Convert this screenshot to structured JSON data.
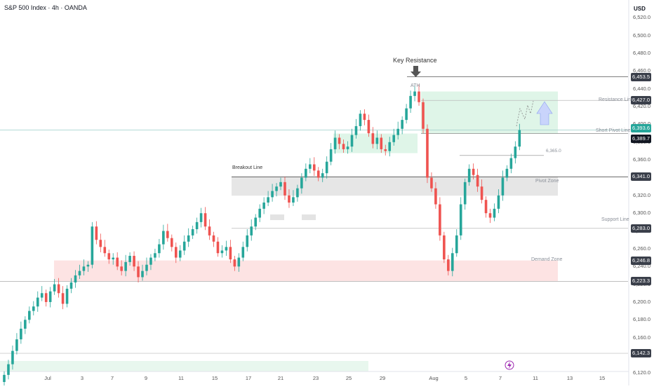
{
  "header": {
    "title": "S&P 500 Index · 4h · OANDA",
    "currency": "USD"
  },
  "price_axis": {
    "ticks": [
      "6,520.0",
      "6,500.0",
      "6,480.0",
      "6,460.0",
      "6,440.0",
      "6,420.0",
      "6,400.0",
      "6,380.0",
      "6,360.0",
      "6,340.0",
      "6,320.0",
      "6,300.0",
      "6,280.0",
      "6,260.0",
      "6,240.0",
      "6,220.0",
      "6,200.0",
      "6,180.0",
      "6,160.0",
      "6,140.0",
      "6,120.0"
    ],
    "tags": [
      {
        "label": "6,453.5",
        "color": "#3a3f4a"
      },
      {
        "label": "6,427.0",
        "color": "#3a3f4a"
      },
      {
        "label": "6,393.6",
        "color": "#26a69a"
      },
      {
        "label": "02:18:34",
        "color": "#26a69a"
      },
      {
        "label": "6,389.7",
        "color": "#131722"
      },
      {
        "label": "6,341.0",
        "color": "#3a3f4a"
      },
      {
        "label": "6,283.0",
        "color": "#3a3f4a"
      },
      {
        "label": "6,246.8",
        "color": "#3a3f4a"
      },
      {
        "label": "6,223.3",
        "color": "#3a3f4a"
      },
      {
        "label": "6,142.3",
        "color": "#3a3f4a"
      }
    ]
  },
  "time_axis": {
    "labels": [
      "Jul",
      "3",
      "7",
      "9",
      "11",
      "15",
      "17",
      "21",
      "23",
      "25",
      "29",
      "Aug",
      "5",
      "7",
      "11",
      "13",
      "15"
    ]
  },
  "annotations": {
    "key_resistance": "Key Resistance",
    "ath": "ATH",
    "resistance_line": "Resistance Line",
    "short_pivot_line": "Short Pivot Line",
    "breakout_line": "Breakout Line",
    "pivot_zone": "Pivot Zone",
    "support_line": "Support Line",
    "demand_zone": "Demand Zone",
    "level_6365": "6,365.0"
  },
  "colors": {
    "up": "#26a69a",
    "down": "#ef5350",
    "demand_zone": "#fde3e3",
    "pivot_zone": "#e6e6e6",
    "resistance_zone": "#dff5e8"
  },
  "chart_data": {
    "type": "candlestick",
    "symbol": "S&P 500 Index",
    "timeframe": "4h",
    "ylim": [
      6110,
      6540
    ],
    "levels": {
      "key_resistance": 6453.5,
      "resistance_line": 6427.0,
      "short_pivot_line": 6389.7,
      "breakout_line": 6341.0,
      "support_line": 6283.0,
      "demand_zone": [
        6223.3,
        6246.8
      ],
      "current_price": 6393.6
    },
    "closes": [
      6118,
      6130,
      6145,
      6158,
      6170,
      6180,
      6190,
      6195,
      6205,
      6210,
      6200,
      6212,
      6220,
      6210,
      6198,
      6215,
      6222,
      6230,
      6235,
      6240,
      6242,
      6285,
      6270,
      6262,
      6255,
      6248,
      6250,
      6240,
      6235,
      6245,
      6252,
      6240,
      6228,
      6235,
      6242,
      6250,
      6255,
      6265,
      6280,
      6272,
      6262,
      6250,
      6258,
      6268,
      6275,
      6282,
      6290,
      6300,
      6285,
      6275,
      6268,
      6255,
      6258,
      6262,
      6248,
      6240,
      6250,
      6262,
      6275,
      6285,
      6295,
      6305,
      6312,
      6318,
      6325,
      6330,
      6335,
      6320,
      6312,
      6318,
      6328,
      6340,
      6350,
      6355,
      6348,
      6340,
      6345,
      6358,
      6372,
      6385,
      6378,
      6372,
      6375,
      6388,
      6398,
      6412,
      6405,
      6390,
      6378,
      6385,
      6372,
      6370,
      6380,
      6388,
      6395,
      6405,
      6418,
      6432,
      6437,
      6425,
      6395,
      6340,
      6328,
      6310,
      6275,
      6248,
      6235,
      6255,
      6275,
      6310,
      6335,
      6350,
      6343,
      6330,
      6315,
      6300,
      6295,
      6305,
      6320,
      6340,
      6350,
      6362,
      6375,
      6393.6
    ]
  }
}
